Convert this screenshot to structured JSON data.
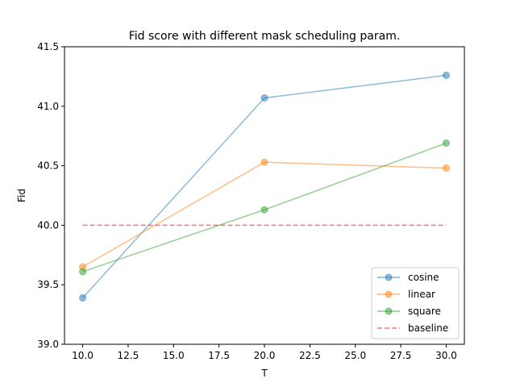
{
  "chart_data": {
    "type": "line",
    "title": "Fid score with different mask scheduling param.",
    "xlabel": "T",
    "ylabel": "Fid",
    "xlim": [
      9.0,
      31.0
    ],
    "ylim": [
      39.0,
      41.5
    ],
    "x": [
      10,
      20,
      30
    ],
    "xticks": [
      "10.0",
      "12.5",
      "15.0",
      "17.5",
      "20.0",
      "22.5",
      "25.0",
      "27.5",
      "30.0"
    ],
    "xtick_values": [
      10.0,
      12.5,
      15.0,
      17.5,
      20.0,
      22.5,
      25.0,
      27.5,
      30.0
    ],
    "yticks": [
      "39.0",
      "39.5",
      "40.0",
      "40.5",
      "41.0",
      "41.5"
    ],
    "ytick_values": [
      39.0,
      39.5,
      40.0,
      40.5,
      41.0,
      41.5
    ],
    "grid": false,
    "legend_position": "lower-right",
    "series": [
      {
        "name": "cosine",
        "values": [
          39.39,
          41.07,
          41.26
        ],
        "color": "#1f77b4",
        "style": "solid",
        "marker": "circle"
      },
      {
        "name": "linear",
        "values": [
          39.65,
          40.53,
          40.48
        ],
        "color": "#ff7f0e",
        "style": "solid",
        "marker": "circle"
      },
      {
        "name": "square",
        "values": [
          39.61,
          40.13,
          40.69
        ],
        "color": "#2ca02c",
        "style": "solid",
        "marker": "circle"
      },
      {
        "name": "baseline",
        "values": [
          40.0,
          40.0,
          40.0
        ],
        "color": "#ff0000",
        "style": "dashed",
        "marker": "none"
      }
    ]
  }
}
